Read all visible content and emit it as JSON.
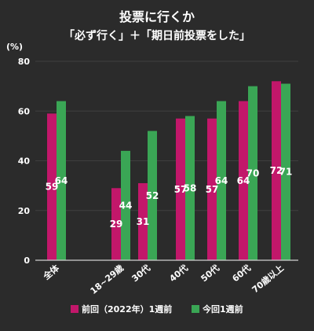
{
  "chart_data": {
    "type": "bar",
    "title": "投票に行くか",
    "subtitle": "「必ず行く」＋「期日前投票をした」",
    "ylabel": "(%)",
    "ylim": [
      0,
      80
    ],
    "yticks": [
      0,
      20,
      40,
      60,
      80
    ],
    "grid": true,
    "legend": "bottom",
    "categories": [
      "全体",
      "18~29歳",
      "30代",
      "40代",
      "50代",
      "60代",
      "70歳以上"
    ],
    "series": [
      {
        "name": "前回（2022年）1週前",
        "color": "#c2176a",
        "values": [
          59,
          29,
          31,
          57,
          57,
          64,
          72
        ]
      },
      {
        "name": "今回1週前",
        "color": "#3aa655",
        "values": [
          64,
          44,
          52,
          58,
          64,
          70,
          71
        ]
      }
    ]
  }
}
